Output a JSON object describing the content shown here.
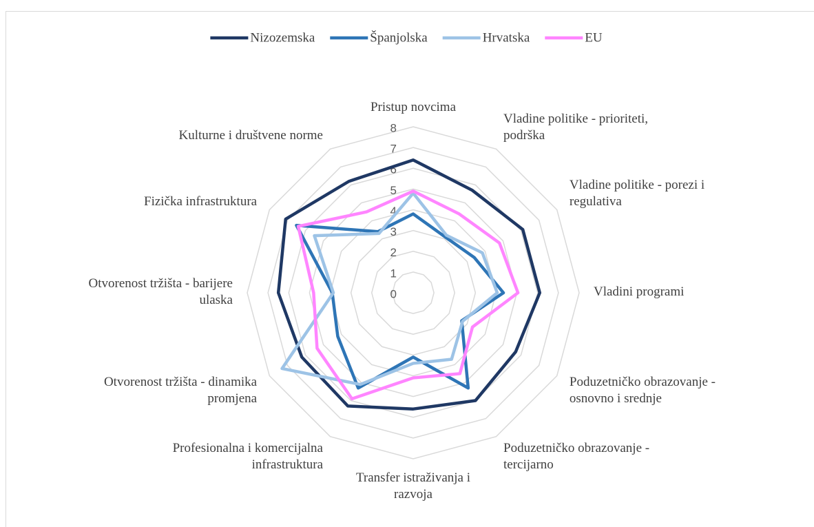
{
  "chart_data": {
    "type": "radar",
    "categories": [
      "Pristup novcima",
      "Vladine politike - prioriteti, podrška",
      "Vladine politike - porezi i regulativa",
      "Vladini programi",
      "Poduzetničko obrazovanje - osnovno i srednje",
      "Poduzetničko obrazovanje - tercijarno",
      "Transfer istraživanja i razvoja",
      "Profesionalna i komercijalna infrastruktura",
      "Otvorenost tržišta - dinamika promjena",
      "Otvorenost tržišta - barijere ulaska",
      "Fizička infrastruktura",
      "Kulturne i društvene norme"
    ],
    "series": [
      {
        "name": "Nizozemska",
        "color": "#1f3864",
        "values": [
          6.4,
          5.7,
          6.1,
          6.1,
          5.7,
          6.0,
          5.6,
          6.3,
          6.2,
          6.5,
          7.1,
          6.2
        ]
      },
      {
        "name": "Španjolska",
        "color": "#2e75b6",
        "values": [
          3.8,
          3.1,
          3.4,
          4.35,
          2.7,
          5.3,
          3.1,
          5.3,
          4.2,
          3.9,
          6.5,
          3.4
        ]
      },
      {
        "name": "Hrvatska",
        "color": "#9dc3e6",
        "values": [
          4.8,
          3.2,
          3.85,
          4.05,
          2.75,
          3.7,
          3.4,
          5.1,
          7.3,
          3.85,
          5.5,
          3.3
        ]
      },
      {
        "name": "EU",
        "color": "#ff85ff",
        "values": [
          4.9,
          4.4,
          4.8,
          5.05,
          3.3,
          4.5,
          4.1,
          5.9,
          5.35,
          4.8,
          6.4,
          4.5
        ]
      }
    ],
    "ylim": [
      0,
      8
    ],
    "yticks": [
      0,
      1,
      2,
      3,
      4,
      5,
      6,
      7,
      8
    ],
    "grid": true,
    "legend": "top"
  }
}
